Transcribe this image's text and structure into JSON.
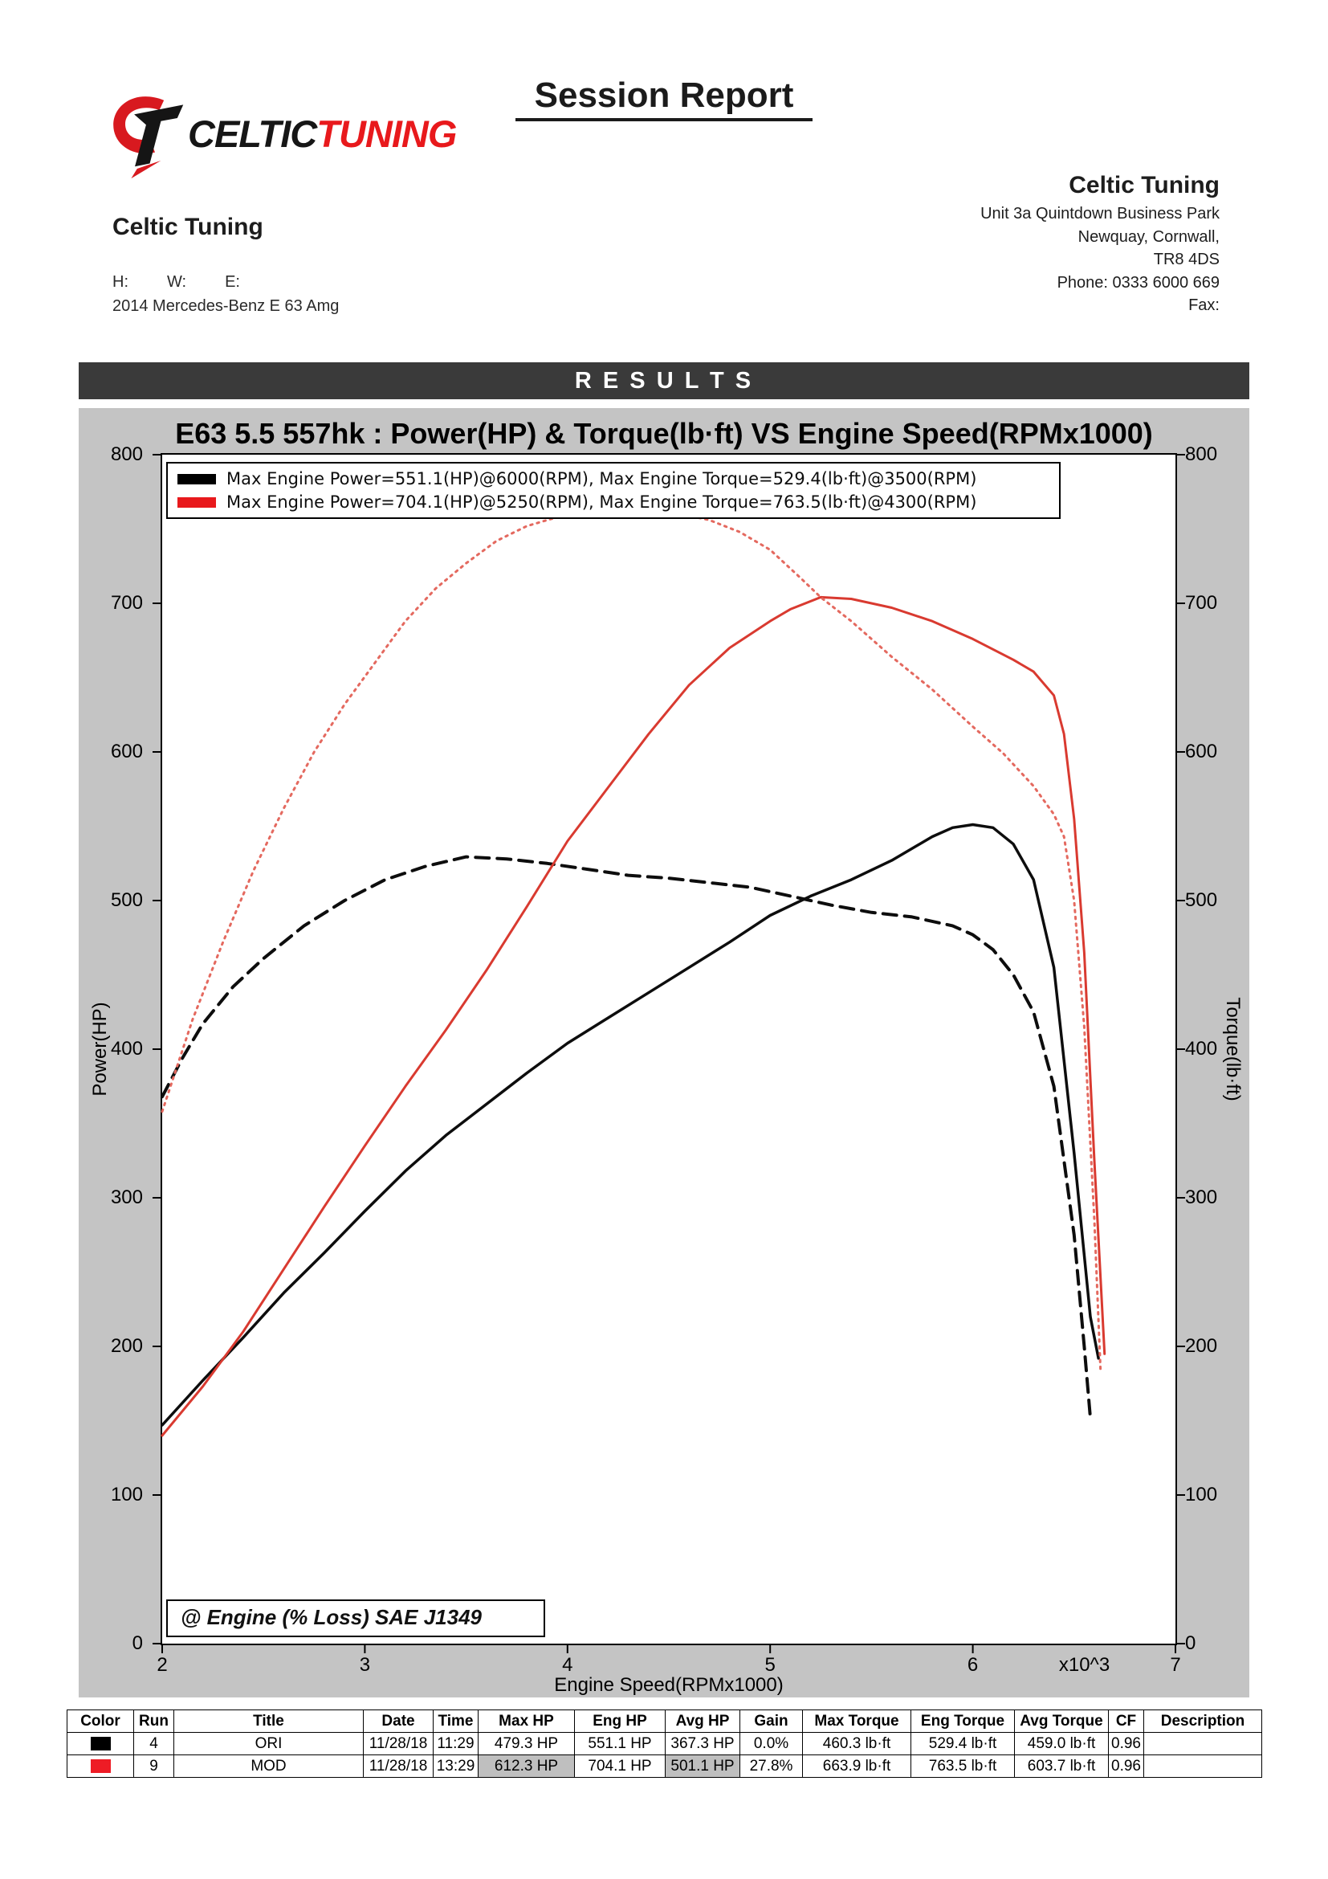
{
  "page": {
    "title": "Session Report"
  },
  "header": {
    "logo": {
      "brand_left": "CELTIC",
      "brand_right": "TUNING"
    },
    "company_left": {
      "name": "Celtic Tuning",
      "labels": {
        "h": "H:",
        "w": "W:",
        "e": "E:"
      },
      "vehicle": "2014 Mercedes-Benz E 63 Amg"
    },
    "company_right": {
      "name": "Celtic Tuning",
      "address_lines": [
        "Unit 3a Quintdown Business Park",
        "Newquay, Cornwall,",
        "TR8 4DS",
        "Phone: 0333 6000 669",
        "Fax:"
      ]
    }
  },
  "results_banner": "R E S U L T S",
  "chart_data": {
    "type": "line",
    "title": "E63 5.5 557hk : Power(HP) & Torque(lb·ft) VS Engine Speed(RPMx1000)",
    "xlabel": "Engine Speed(RPMx1000)",
    "x_multiplier_label": "x10^3",
    "ylabel_left": "Power(HP)",
    "ylabel_right": "Torque(lb·ft)",
    "xlim": [
      2,
      7
    ],
    "ylim": [
      0,
      800
    ],
    "x_ticks": [
      2,
      3,
      4,
      5,
      6,
      7
    ],
    "y_ticks": [
      0,
      100,
      200,
      300,
      400,
      500,
      600,
      700,
      800
    ],
    "grid": false,
    "legend_position": "top-left",
    "annotation": "@ Engine (% Loss) SAE J1349",
    "legend": [
      {
        "color": "#000000",
        "label": "Max Engine Power=551.1(HP)@6000(RPM), Max Engine Torque=529.4(lb·ft)@3500(RPM)"
      },
      {
        "color": "#e8191c",
        "label": "Max Engine Power=704.1(HP)@5250(RPM), Max Engine Torque=763.5(lb·ft)@4300(RPM)"
      }
    ],
    "series": [
      {
        "name": "ori-power",
        "run": "ORI",
        "measure": "Power(HP)",
        "color": "#0d0d0d",
        "style": "solid",
        "width": 3.5,
        "x": [
          2.0,
          2.2,
          2.4,
          2.6,
          2.8,
          3.0,
          3.2,
          3.4,
          3.6,
          3.8,
          4.0,
          4.2,
          4.4,
          4.6,
          4.8,
          5.0,
          5.2,
          5.4,
          5.6,
          5.8,
          5.9,
          6.0,
          6.1,
          6.2,
          6.3,
          6.4,
          6.5,
          6.58,
          6.62
        ],
        "y": [
          147,
          177,
          206,
          236,
          263,
          291,
          318,
          342,
          363,
          384,
          404,
          421,
          438,
          455,
          472,
          490,
          503,
          514,
          527,
          543,
          549,
          551.1,
          549,
          538,
          514,
          455,
          330,
          220,
          192
        ]
      },
      {
        "name": "ori-torque",
        "run": "ORI",
        "measure": "Torque(lb·ft)",
        "color": "#0d0d0d",
        "style": "dashed",
        "width": 4,
        "x": [
          2.0,
          2.1,
          2.2,
          2.35,
          2.5,
          2.7,
          2.9,
          3.1,
          3.3,
          3.5,
          3.7,
          3.9,
          4.1,
          4.3,
          4.5,
          4.7,
          4.9,
          5.1,
          5.3,
          5.5,
          5.7,
          5.9,
          6.0,
          6.1,
          6.2,
          6.3,
          6.4,
          6.5,
          6.55,
          6.58
        ],
        "y": [
          368,
          394,
          417,
          442,
          461,
          483,
          500,
          514,
          523,
          529.4,
          528,
          525,
          521,
          517,
          515,
          512,
          509,
          503,
          497,
          492,
          489,
          483,
          477,
          467,
          450,
          425,
          375,
          275,
          200,
          152
        ]
      },
      {
        "name": "mod-power",
        "run": "MOD",
        "measure": "Power(HP)",
        "color": "#d93a30",
        "style": "solid",
        "width": 3,
        "x": [
          2.0,
          2.2,
          2.4,
          2.6,
          2.8,
          3.0,
          3.2,
          3.4,
          3.6,
          3.8,
          4.0,
          4.2,
          4.4,
          4.6,
          4.8,
          5.0,
          5.1,
          5.25,
          5.4,
          5.6,
          5.8,
          6.0,
          6.2,
          6.3,
          6.4,
          6.45,
          6.5,
          6.55,
          6.6,
          6.65
        ],
        "y": [
          140,
          173,
          210,
          252,
          294,
          335,
          375,
          413,
          453,
          496,
          540,
          576,
          612,
          645,
          670,
          688,
          696,
          704.1,
          703,
          697,
          688,
          676,
          662,
          654,
          638,
          612,
          555,
          465,
          325,
          195
        ]
      },
      {
        "name": "mod-torque",
        "run": "MOD",
        "measure": "Torque(lb·ft)",
        "color": "#e4695f",
        "style": "dotted",
        "width": 3,
        "x": [
          2.0,
          2.15,
          2.3,
          2.45,
          2.6,
          2.75,
          2.9,
          3.05,
          3.2,
          3.35,
          3.5,
          3.65,
          3.8,
          3.95,
          4.1,
          4.3,
          4.5,
          4.7,
          4.85,
          5.0,
          5.15,
          5.25,
          5.4,
          5.6,
          5.8,
          6.0,
          6.15,
          6.3,
          6.4,
          6.45,
          6.5,
          6.55,
          6.6,
          6.63
        ],
        "y": [
          358,
          420,
          472,
          520,
          562,
          600,
          632,
          660,
          688,
          710,
          727,
          742,
          752,
          758,
          761,
          763.5,
          762,
          756,
          748,
          736,
          717,
          704,
          688,
          664,
          642,
          617,
          599,
          577,
          558,
          543,
          500,
          415,
          285,
          185
        ]
      }
    ]
  },
  "table": {
    "headers": [
      "Color",
      "Run",
      "Title",
      "Date",
      "Time",
      "Max HP",
      "Eng HP",
      "Avg HP",
      "Gain",
      "Max Torque",
      "Eng Torque",
      "Avg Torque",
      "CF",
      "Description"
    ],
    "rows": [
      {
        "color": "#000000",
        "highlight_cols": [],
        "cells": [
          "",
          "4",
          "ORI",
          "11/28/18",
          "11:29",
          "479.3 HP",
          "551.1 HP",
          "367.3 HP",
          "0.0%",
          "460.3 lb·ft",
          "529.4 lb·ft",
          "459.0 lb·ft",
          "0.96",
          ""
        ]
      },
      {
        "color": "#ee1c25",
        "highlight_cols": [
          5,
          7
        ],
        "cells": [
          "",
          "9",
          "MOD",
          "11/28/18",
          "13:29",
          "612.3 HP",
          "704.1 HP",
          "501.1 HP",
          "27.8%",
          "663.9 lb·ft",
          "763.5 lb·ft",
          "603.7 lb·ft",
          "0.96",
          ""
        ]
      }
    ]
  }
}
